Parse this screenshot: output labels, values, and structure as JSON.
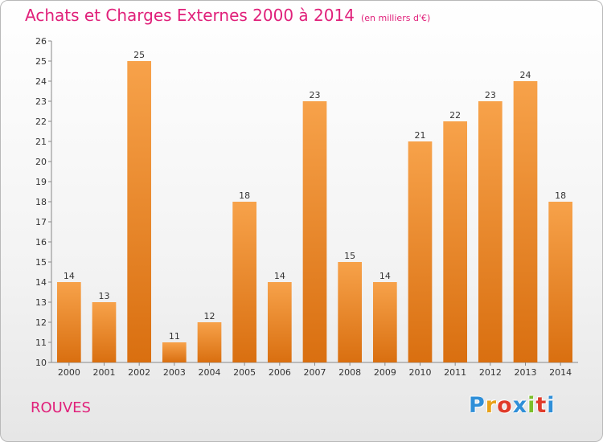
{
  "header": {
    "title": "Achats et Charges Externes 2000 à 2014",
    "subtitle": "(en milliers d'€)"
  },
  "footer": {
    "commune": "ROUVES",
    "logo_letters": [
      "P",
      "r",
      "o",
      "x",
      "i",
      "t",
      "i"
    ],
    "logo_colors": [
      "#2f8fd8",
      "#e8a21a",
      "#e03b2a",
      "#2f8fd8",
      "#7cbf2a",
      "#e03b2a",
      "#2f8fd8"
    ]
  },
  "chart_data": {
    "type": "bar",
    "categories": [
      "2000",
      "2001",
      "2002",
      "2003",
      "2004",
      "2005",
      "2006",
      "2007",
      "2008",
      "2009",
      "2010",
      "2011",
      "2012",
      "2013",
      "2014"
    ],
    "values": [
      14,
      13,
      25,
      11,
      12,
      18,
      14,
      23,
      15,
      14,
      21,
      22,
      23,
      24,
      18
    ],
    "title": "Achats et Charges Externes 2000 à 2014",
    "xlabel": "",
    "ylabel": "",
    "ylim": [
      10,
      26
    ],
    "yticks": [
      10,
      11,
      12,
      13,
      14,
      15,
      16,
      17,
      18,
      19,
      20,
      21,
      22,
      23,
      24,
      25,
      26
    ],
    "grid": false,
    "bar_color_top": "#f7a24a",
    "bar_color_bottom": "#d96f10"
  }
}
